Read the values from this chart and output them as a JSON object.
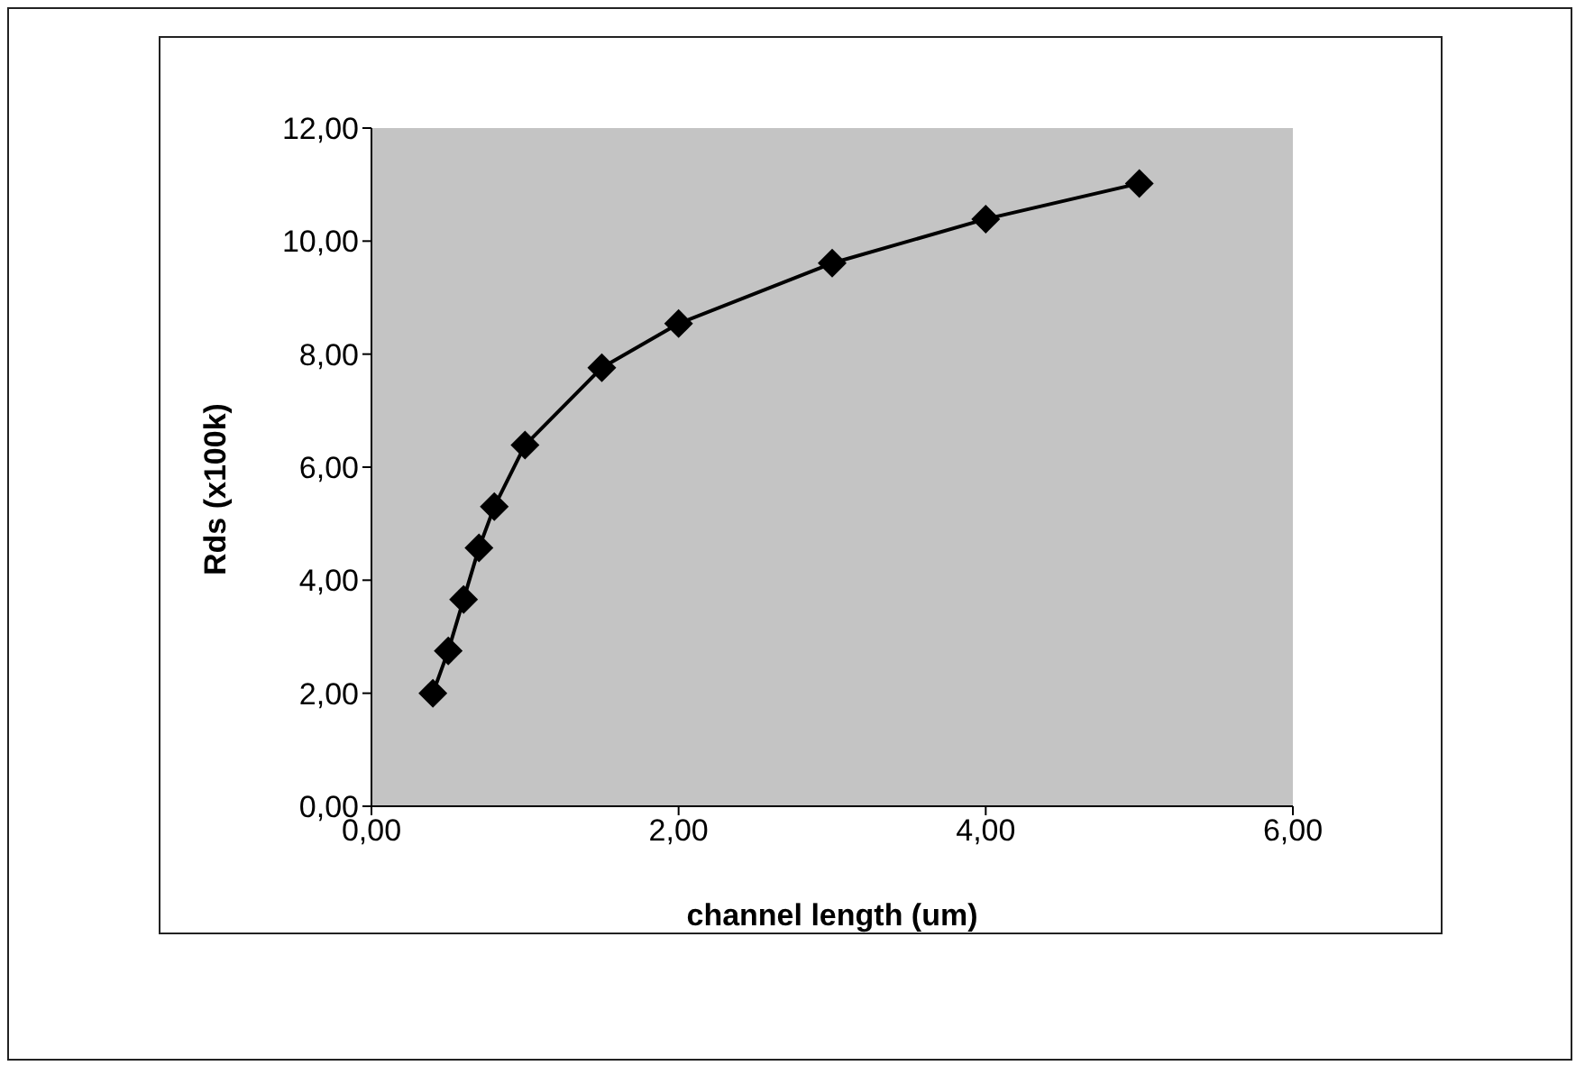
{
  "chart_data": {
    "type": "line",
    "xlabel": "channel length (um)",
    "ylabel": "Rds (x100k)",
    "x": [
      0.4,
      0.5,
      0.6,
      0.7,
      0.8,
      1.0,
      1.5,
      2.0,
      3.0,
      4.0,
      5.0
    ],
    "series": [
      {
        "color": "#000000",
        "values": [
          2.0,
          2.75,
          3.66,
          4.57,
          5.3,
          6.39,
          7.76,
          8.54,
          9.61,
          10.39,
          11.02
        ]
      }
    ],
    "xlim": [
      0,
      6
    ],
    "xticks": [
      {
        "value": 0,
        "label": "0,00"
      },
      {
        "value": 2,
        "label": "2,00"
      },
      {
        "value": 4,
        "label": "4,00"
      },
      {
        "value": 6,
        "label": "6,00"
      }
    ],
    "ylim": [
      0,
      12
    ],
    "yticks": [
      {
        "value": 0,
        "label": "0,00"
      },
      {
        "value": 2,
        "label": "2,00"
      },
      {
        "value": 4,
        "label": "4,00"
      },
      {
        "value": 6,
        "label": "6,00"
      },
      {
        "value": 8,
        "label": "8,00"
      },
      {
        "value": 10,
        "label": "10,00"
      },
      {
        "value": 12,
        "label": "12,00"
      }
    ],
    "grid": false,
    "legend": false,
    "marker": "diamond",
    "line_style": "solid"
  }
}
